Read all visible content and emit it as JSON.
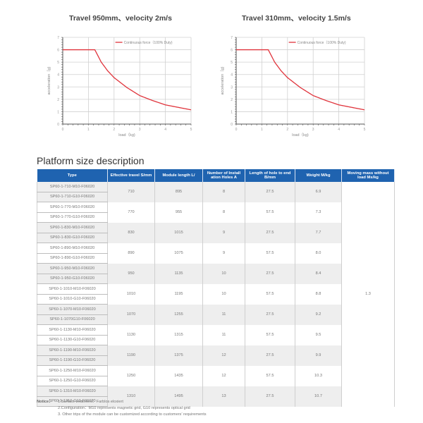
{
  "charts": [
    {
      "title": "Travel 950mm、velocity 2m/s",
      "legend": "Continuous force（100% Duty)",
      "xlabel": "load（kg)",
      "ylabel": "acceleration（g)",
      "xticks": [
        "0",
        "1",
        "2",
        "3",
        "4",
        "5"
      ],
      "yticks": [
        "0",
        "1",
        "2",
        "3",
        "4",
        "5",
        "6",
        "7"
      ]
    },
    {
      "title": "Travel 310mm、velocity 1.5m/s",
      "legend": "Continuous force（100% Duty)",
      "xlabel": "load（kg)",
      "ylabel": "acceleration（g)",
      "xticks": [
        "0",
        "1",
        "2",
        "3",
        "4",
        "5"
      ],
      "yticks": [
        "0",
        "1",
        "2",
        "3",
        "4",
        "5",
        "6",
        "7"
      ]
    }
  ],
  "chart_data": [
    {
      "type": "line",
      "title": "Travel 950mm、velocity 2m/s",
      "xlabel": "load (kg)",
      "ylabel": "acceleration (g)",
      "xlim": [
        0,
        5
      ],
      "ylim": [
        0,
        7
      ],
      "grid": true,
      "legend_position": "top-right",
      "series": [
        {
          "name": "Continuous force (100% Duty)",
          "color": "#e0343c",
          "x": [
            0,
            0.5,
            1.0,
            1.25,
            1.5,
            1.75,
            2.0,
            2.5,
            3.0,
            3.5,
            4.0,
            4.5,
            5.0
          ],
          "y": [
            6.0,
            6.0,
            6.0,
            6.0,
            5.0,
            4.3,
            3.75,
            2.95,
            2.3,
            1.9,
            1.55,
            1.35,
            1.15
          ]
        }
      ]
    },
    {
      "type": "line",
      "title": "Travel 310mm、velocity 1.5m/s",
      "xlabel": "load (kg)",
      "ylabel": "acceleration (g)",
      "xlim": [
        0,
        5
      ],
      "ylim": [
        0,
        7
      ],
      "grid": true,
      "legend_position": "top-right",
      "series": [
        {
          "name": "Continuous force (100% Duty)",
          "color": "#e0343c",
          "x": [
            0,
            0.5,
            1.0,
            1.25,
            1.5,
            1.75,
            2.0,
            2.5,
            3.0,
            3.5,
            4.0,
            4.5,
            5.0
          ],
          "y": [
            6.0,
            6.0,
            6.0,
            6.0,
            5.0,
            4.3,
            3.75,
            2.95,
            2.3,
            1.9,
            1.55,
            1.35,
            1.15
          ]
        }
      ]
    }
  ],
  "section": {
    "title": "Platform size description"
  },
  "table": {
    "headers": [
      "Type",
      "Effective travel S/mm",
      "Module length L/",
      "Number of Install ation Holes A",
      "Length of hole to end B/mm",
      "Weight M/kg",
      "Moving mass without load Ms/kg"
    ],
    "moving_mass": "1.3",
    "groups": [
      {
        "types": [
          "SP60-1-710-M10-F06020",
          "SP60-1-710-G10-F06020"
        ],
        "travel": "710",
        "length": "895",
        "holes": "8",
        "hole_to_end": "27.5",
        "weight": "6.9"
      },
      {
        "types": [
          "SP60-1-770-M10-F06020",
          "SP60-1-770-G10-F06020"
        ],
        "travel": "770",
        "length": "955",
        "holes": "8",
        "hole_to_end": "57.5",
        "weight": "7.3"
      },
      {
        "types": [
          "SP60-1-830-M10-F06020",
          "SP60-1-830-G10-F06020"
        ],
        "travel": "830",
        "length": "1015",
        "holes": "9",
        "hole_to_end": "27.5",
        "weight": "7.7"
      },
      {
        "types": [
          "SP60-1-890-M10-F06020",
          "SP60-1-890-G10-F06020"
        ],
        "travel": "890",
        "length": "1075",
        "holes": "9",
        "hole_to_end": "57.5",
        "weight": "8.0"
      },
      {
        "types": [
          "SP60-1-950-M10-F06020",
          "SP60-1-950-G10-F06020"
        ],
        "travel": "950",
        "length": "1135",
        "holes": "10",
        "hole_to_end": "27.5",
        "weight": "8.4"
      },
      {
        "types": [
          "SP60-1-1010-M10-F06020",
          "SP60-1-1010-G10-F06020"
        ],
        "travel": "1010",
        "length": "1195",
        "holes": "10",
        "hole_to_end": "57.5",
        "weight": "8.8"
      },
      {
        "types": [
          "SP60-1-1070-M10-F06020",
          "SP60-1-1070G10-F06020"
        ],
        "travel": "1070",
        "length": "1255",
        "holes": "11",
        "hole_to_end": "27.5",
        "weight": "9.2"
      },
      {
        "types": [
          "SP60-1-1130-M10-F06020",
          "SP60-1-1130-G10-F06020"
        ],
        "travel": "1130",
        "length": "1315",
        "holes": "11",
        "hole_to_end": "57.5",
        "weight": "9.5"
      },
      {
        "types": [
          "SP60-1-1190-M10-F06020",
          "SP60-1-1190-G10-F06020"
        ],
        "travel": "1190",
        "length": "1375",
        "holes": "12",
        "hole_to_end": "27.5",
        "weight": "9.9"
      },
      {
        "types": [
          "SP60-1-1250-M10-F06020",
          "SP60-1-1250-G10-F06020"
        ],
        "travel": "1250",
        "length": "1435",
        "holes": "12",
        "hole_to_end": "57.5",
        "weight": "10.3"
      },
      {
        "types": [
          "SP60-1-1310-M10-F06020",
          "SP60-1-1310-G10-F06020"
        ],
        "travel": "1310",
        "length": "1495",
        "holes": "13",
        "hole_to_end": "27.5",
        "weight": "10.7"
      }
    ]
  },
  "notice": {
    "label": "Notice：",
    "items": [
      "1.Surface treatment：Farblos eloxiert",
      "2.Configuration：M10 represents magnetic grid, G10 represents optical grid",
      "3. Other trips of the module can be customized according to customers’ requirements"
    ]
  },
  "colors": {
    "header_bg": "#1f63b0",
    "curve": "#e0343c",
    "row_shade": "#eeeeee"
  }
}
